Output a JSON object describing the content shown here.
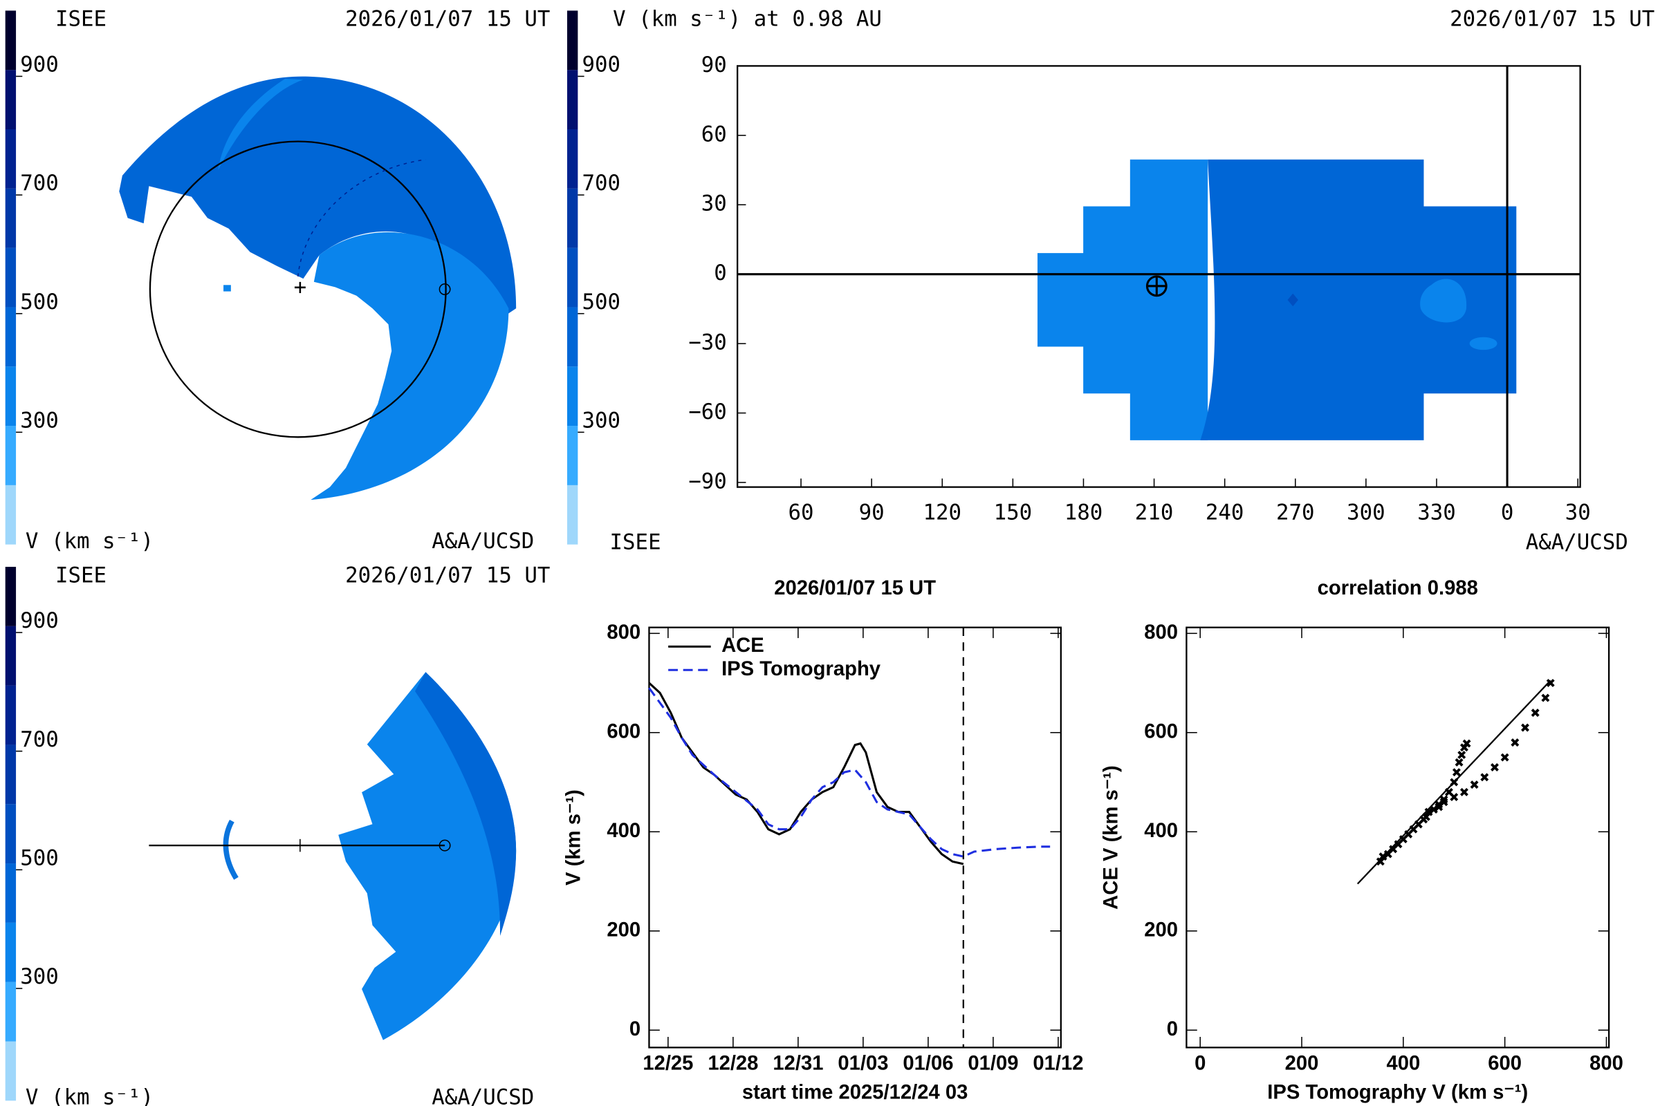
{
  "chart_data": [
    {
      "type": "polar-map",
      "source": "ISEE",
      "date": "2026/01/07 15 UT",
      "credit": "A&A/UCSD",
      "colorbar": {
        "label": "V (km s⁻¹)",
        "lim": [
          100,
          1000
        ],
        "ticks": [
          300,
          500,
          700,
          900
        ],
        "bounds": [
          100,
          200,
          300,
          400,
          500,
          600,
          700,
          800,
          900,
          1000
        ],
        "colors": [
          "#9fd7fb",
          "#36abff",
          "#0a84ec",
          "#0066d6",
          "#004fc0",
          "#0038a8",
          "#002290",
          "#001070",
          "#00002e"
        ]
      }
    },
    {
      "type": "lonlat-map",
      "title": "V (km s⁻¹) at 0.98 AU",
      "date": "2026/01/07 15 UT",
      "source": "ISEE",
      "credit": "A&A/UCSD",
      "colorbar": {
        "lim": [
          100,
          1000
        ],
        "ticks": [
          300,
          500,
          700,
          900
        ],
        "bounds": [
          100,
          200,
          300,
          400,
          500,
          600,
          700,
          800,
          900,
          1000
        ],
        "colors": [
          "#9fd7fb",
          "#36abff",
          "#0a84ec",
          "#0066d6",
          "#004fc0",
          "#0038a8",
          "#002290",
          "#001070",
          "#00002e"
        ]
      },
      "xlim": [
        33,
        391
      ],
      "ylim": [
        -92,
        90
      ],
      "xticks": [
        60,
        90,
        120,
        150,
        180,
        210,
        240,
        270,
        300,
        330,
        {
          "value": 360,
          "label": "0"
        },
        {
          "value": 390,
          "label": "30"
        }
      ],
      "yticks": [
        90,
        60,
        30,
        0,
        {
          "value": -30,
          "label": "−30"
        },
        {
          "value": -60,
          "label": "−60"
        },
        {
          "value": -90,
          "label": "−90"
        }
      ]
    },
    {
      "type": "polar-map",
      "source": "ISEE",
      "date": "2026/01/07 15 UT",
      "credit": "A&A/UCSD",
      "colorbar": {
        "label": "V (km s⁻¹)",
        "lim": [
          100,
          1000
        ],
        "ticks": [
          300,
          500,
          700,
          900
        ],
        "bounds": [
          100,
          200,
          300,
          400,
          500,
          600,
          700,
          800,
          900,
          1000
        ],
        "colors": [
          "#9fd7fb",
          "#36abff",
          "#0a84ec",
          "#0066d6",
          "#004fc0",
          "#0038a8",
          "#002290",
          "#001070",
          "#00002e"
        ]
      }
    },
    {
      "type": "line",
      "title": "2026/01/07 15 UT",
      "x_label": "start time 2025/12/24 03",
      "y_label": "V (km s⁻¹)",
      "xlim": [
        0,
        19
      ],
      "ylim": [
        -35,
        812
      ],
      "yticks": [
        0,
        200,
        400,
        600,
        800
      ],
      "xticks": [
        {
          "value": 0.875,
          "label": "12/25"
        },
        {
          "value": 3.875,
          "label": "12/28"
        },
        {
          "value": 6.875,
          "label": "12/31"
        },
        {
          "value": 9.875,
          "label": "01/03"
        },
        {
          "value": 12.875,
          "label": "01/06"
        },
        {
          "value": 15.875,
          "label": "01/09"
        },
        {
          "value": 18.875,
          "label": "01/12"
        }
      ],
      "marker_x": 14.5,
      "series": [
        {
          "name": "ACE",
          "color": "#000000",
          "dash": false,
          "x": [
            0,
            0.5,
            1,
            1.5,
            2,
            2.5,
            3,
            3.5,
            4,
            4.5,
            5,
            5.5,
            6,
            6.5,
            7,
            7.5,
            8,
            8.5,
            9,
            9.5,
            9.75,
            10,
            10.5,
            11,
            11.5,
            12,
            12.5,
            13,
            13.5,
            14,
            14.5
          ],
          "values": [
            700,
            680,
            640,
            590,
            560,
            530,
            515,
            495,
            475,
            465,
            440,
            405,
            395,
            405,
            440,
            465,
            480,
            490,
            530,
            575,
            578,
            560,
            480,
            450,
            440,
            440,
            410,
            380,
            355,
            340,
            335
          ]
        },
        {
          "name": "IPS Tomography",
          "color": "#1f2fe0",
          "dash": true,
          "x": [
            0,
            1,
            1.5,
            2,
            3,
            4,
            5,
            5.5,
            6,
            6.5,
            7,
            7.5,
            8,
            8.5,
            9,
            9.5,
            10,
            10.5,
            11,
            12,
            12.5,
            13,
            13.5,
            14,
            14.5,
            15,
            16,
            17,
            18,
            18.5
          ],
          "values": [
            690,
            630,
            590,
            555,
            515,
            480,
            445,
            415,
            405,
            405,
            430,
            465,
            490,
            500,
            520,
            525,
            500,
            460,
            445,
            435,
            410,
            385,
            365,
            355,
            350,
            360,
            365,
            368,
            370,
            370
          ]
        }
      ]
    },
    {
      "type": "scatter",
      "title": "correlation 0.988",
      "x_label": "IPS Tomography V (km s⁻¹)",
      "y_label": "ACE V (km s⁻¹)",
      "xlim": [
        -27,
        805
      ],
      "ylim": [
        -35,
        812
      ],
      "xticks": [
        0,
        200,
        400,
        600,
        800
      ],
      "yticks": [
        0,
        200,
        400,
        600,
        800
      ],
      "x": [
        355,
        360,
        370,
        380,
        390,
        400,
        410,
        420,
        430,
        440,
        445,
        450,
        460,
        470,
        480,
        490,
        500,
        505,
        510,
        515,
        520,
        525,
        470,
        480,
        500,
        520,
        540,
        560,
        580,
        600,
        620,
        640,
        660,
        680,
        690
      ],
      "values": [
        340,
        350,
        355,
        365,
        375,
        385,
        395,
        405,
        415,
        425,
        430,
        440,
        445,
        455,
        465,
        480,
        500,
        520,
        540,
        555,
        570,
        578,
        450,
        460,
        470,
        480,
        495,
        510,
        530,
        550,
        580,
        610,
        640,
        670,
        700
      ],
      "fit_line": {
        "x": [
          310,
          690
        ],
        "y": [
          295,
          705
        ]
      }
    }
  ]
}
